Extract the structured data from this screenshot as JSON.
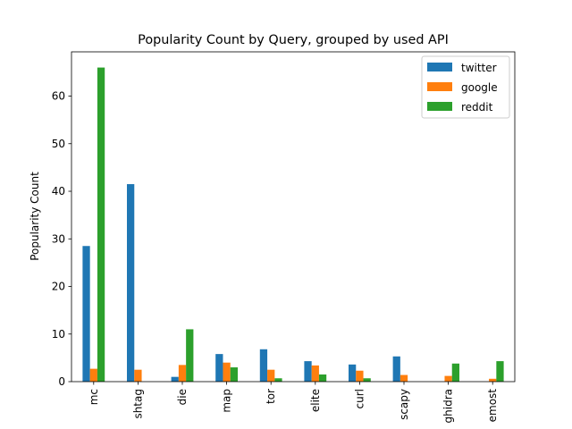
{
  "chart_data": {
    "type": "bar",
    "title": "Popularity Count by Query, grouped by used API",
    "xlabel": "",
    "ylabel": "Popularity Count",
    "ylim": [
      0,
      69.3
    ],
    "yticks": [
      0,
      10,
      20,
      30,
      40,
      50,
      60
    ],
    "grid": false,
    "legend_position": "top-right",
    "categories": [
      "mc",
      "shtag",
      "die",
      "map",
      "tor",
      "elite",
      "curl",
      "scapy",
      "ghidra",
      "emost"
    ],
    "series": [
      {
        "name": "twitter",
        "color": "#1f77b4",
        "values": [
          28.5,
          41.5,
          1.0,
          5.8,
          6.8,
          4.3,
          3.6,
          5.3,
          0,
          0
        ]
      },
      {
        "name": "google",
        "color": "#ff7f0e",
        "values": [
          2.7,
          2.5,
          3.5,
          4.0,
          2.5,
          3.4,
          2.3,
          1.4,
          1.2,
          0.6
        ]
      },
      {
        "name": "reddit",
        "color": "#2ca02c",
        "values": [
          66.0,
          0,
          11.0,
          3.0,
          0.7,
          1.5,
          0.7,
          0,
          3.8,
          4.3
        ]
      }
    ]
  }
}
